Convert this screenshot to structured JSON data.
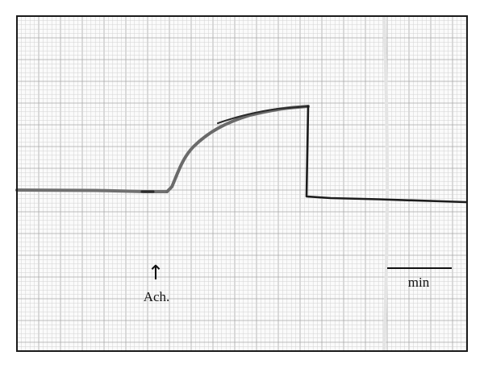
{
  "figure": {
    "colors": {
      "frame": "#1a1a1a",
      "grid_major": "#a8a8a8",
      "grid_minor": "#d2d2d2",
      "paper": "#fbfbfb",
      "trace_gray": "#707070",
      "trace_dark": "#1c1c1c"
    },
    "annotations": {
      "arrow_glyph": "↑",
      "stimulus_label": "Ach.",
      "scale_bar_label": "min"
    }
  }
}
